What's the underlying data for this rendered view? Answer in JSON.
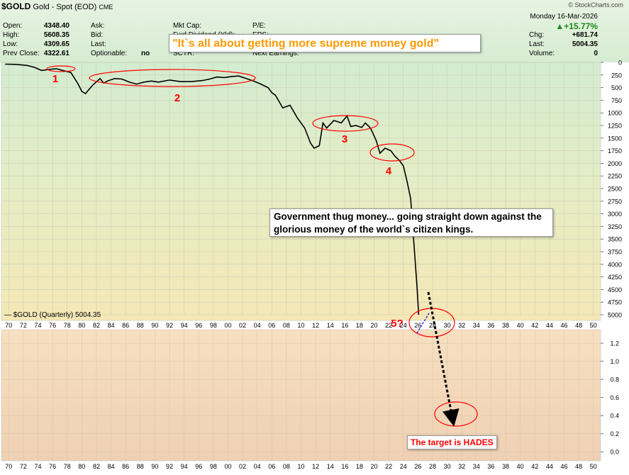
{
  "header": {
    "symbol": "$GOLD",
    "description": "Gold - Spot (EOD)",
    "exchange": "CME",
    "credit": "© StockCharts.com",
    "date": "Monday 16-Mar-2026",
    "quote_left": [
      {
        "label": "Open:",
        "value": "4348.40"
      },
      {
        "label": "High:",
        "value": "5608.35"
      },
      {
        "label": "Low:",
        "value": "4309.65"
      },
      {
        "label": "Prev Close:",
        "value": "4322.61"
      }
    ],
    "quote_mid": [
      "Ask:",
      "Bid:",
      "Last:",
      "Optionable:"
    ],
    "optionable_value": "no",
    "quote_mid2": [
      "Mkt Cap:",
      "Fwd Dividend (Yld):",
      "Yield:",
      "SCTR:"
    ],
    "quote_mid3": [
      "P/E:",
      "EPS:",
      "Ex-Dividend:",
      "Next Earnings:"
    ],
    "pct_change": "▲+15.77%",
    "change": {
      "label": "Chg:",
      "value": "+681.74"
    },
    "last": {
      "label": "Last:",
      "value": "5004.35"
    },
    "volume": {
      "label": "Volume:",
      "value": "0"
    },
    "callout": "\"It`s all about getting more supreme money gold\""
  },
  "colors": {
    "price_line": "#000000",
    "ellipse": "#ff0000",
    "label_red": "#ff0000",
    "callout_text": "#ff9900",
    "arrow": "#000000",
    "dashed": "#0000ff"
  },
  "annotations": {
    "note": "Government thug money... going straight down against the glorious money of the world`s citizen kings.",
    "target": "The target is HADES",
    "wave_labels": [
      "1",
      "2",
      "3",
      "4",
      "5?"
    ]
  },
  "chart_data": [
    {
      "type": "line",
      "legend": "$GOLD (Quarterly) 5004.35",
      "y_axis": "inverted",
      "ylim": [
        0,
        5000
      ],
      "yticks": [
        "0",
        "250",
        "500",
        "750",
        "1000",
        "1250",
        "1500",
        "1750",
        "2000",
        "2250",
        "2500",
        "2750",
        "3000",
        "3250",
        "3500",
        "3750",
        "4000",
        "4250",
        "4500",
        "4750",
        "5000"
      ],
      "xlim": [
        1969,
        2051
      ],
      "x_tick_labels": [
        "70",
        "72",
        "74",
        "76",
        "78",
        "80",
        "82",
        "84",
        "86",
        "88",
        "90",
        "92",
        "94",
        "96",
        "98",
        "00",
        "02",
        "04",
        "06",
        "08",
        "10",
        "12",
        "14",
        "16",
        "18",
        "20",
        "22",
        "24",
        "26",
        "28",
        "30",
        "32",
        "34",
        "36",
        "38",
        "40",
        "42",
        "44",
        "46",
        "48",
        "50"
      ],
      "x": [
        1969.5,
        1971,
        1972.5,
        1973.5,
        1974.5,
        1975.5,
        1976.5,
        1977.5,
        1978.5,
        1979.5,
        1980.0,
        1980.5,
        1981.5,
        1982.5,
        1983.0,
        1983.5,
        1984.5,
        1985.5,
        1986.5,
        1987.5,
        1988.5,
        1989.5,
        1990.5,
        1992,
        1993.5,
        1995,
        1996.5,
        1997.5,
        1998.5,
        1999.5,
        2000.5,
        2001.5,
        2002.5,
        2003.5,
        2004.5,
        2005.5,
        2006,
        2006.5,
        2007.5,
        2008.5,
        2009.5,
        2010.5,
        2011.3,
        2011.8,
        2012.5,
        2013.0,
        2013.5,
        2014.5,
        2015.5,
        2016.3,
        2016.8,
        2017.5,
        2018.3,
        2018.8,
        2019.5,
        2020.3,
        2020.8,
        2021.5,
        2022.3,
        2022.8,
        2023.5,
        2024.0,
        2024.5,
        2025.0,
        2025.3,
        2025.6,
        2025.9,
        2026.1
      ],
      "y": [
        35,
        40,
        60,
        97,
        160,
        140,
        125,
        165,
        200,
        430,
        575,
        620,
        450,
        320,
        410,
        370,
        320,
        330,
        390,
        430,
        390,
        370,
        390,
        350,
        380,
        380,
        360,
        330,
        290,
        300,
        280,
        270,
        320,
        370,
        430,
        500,
        600,
        650,
        900,
        850,
        1100,
        1300,
        1600,
        1700,
        1650,
        1200,
        1300,
        1150,
        1200,
        1060,
        1270,
        1250,
        1290,
        1200,
        1300,
        1550,
        1800,
        1700,
        1750,
        1850,
        1950,
        2050,
        2350,
        2700,
        3300,
        3900,
        4500,
        5000
      ]
    },
    {
      "type": "area",
      "ylim": [
        -0.1,
        1.35
      ],
      "yticks": [
        "1.2",
        "1.0",
        "0.8",
        "0.6",
        "0.4",
        "0.2",
        "0.0"
      ],
      "x_tick_labels": [
        "70",
        "72",
        "74",
        "76",
        "78",
        "80",
        "82",
        "84",
        "86",
        "88",
        "90",
        "92",
        "94",
        "96",
        "98",
        "00",
        "02",
        "04",
        "06",
        "08",
        "10",
        "12",
        "14",
        "16",
        "18",
        "20",
        "22",
        "24",
        "26",
        "28",
        "30",
        "32",
        "34",
        "36",
        "38",
        "40",
        "42",
        "44",
        "46",
        "48",
        "50"
      ]
    }
  ]
}
